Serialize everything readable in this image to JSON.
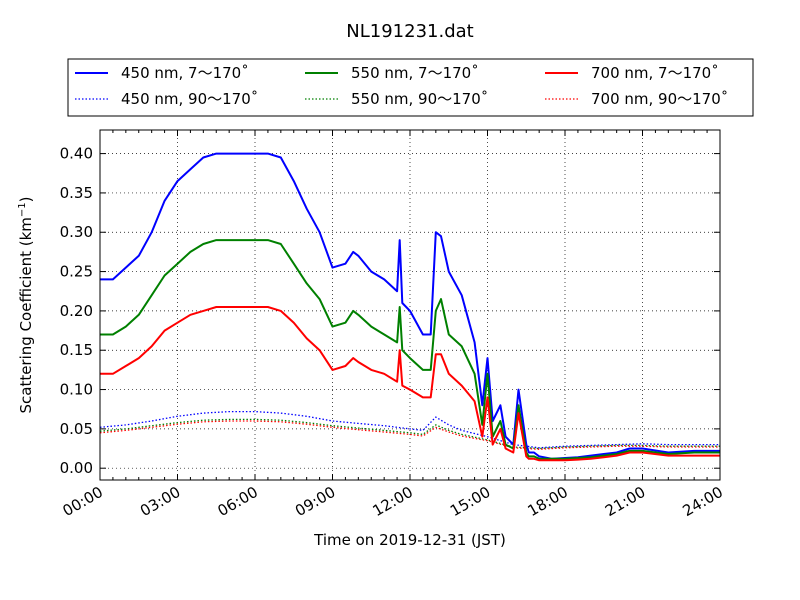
{
  "chart_data": {
    "type": "line",
    "title": "NL191231.dat",
    "xlabel": "Time on 2019-12-31 (JST)",
    "ylabel": {
      "prefix": "Scattering Coefficient (km",
      "sup": "−1",
      "suffix": ")"
    },
    "x_unit": "hours",
    "xlim": [
      0,
      24
    ],
    "ylim": [
      -0.015,
      0.43
    ],
    "x_ticks": [
      {
        "value": 0,
        "label": "00:00"
      },
      {
        "value": 3,
        "label": "03:00"
      },
      {
        "value": 6,
        "label": "06:00"
      },
      {
        "value": 9,
        "label": "09:00"
      },
      {
        "value": 12,
        "label": "12:00"
      },
      {
        "value": 15,
        "label": "15:00"
      },
      {
        "value": 18,
        "label": "18:00"
      },
      {
        "value": 21,
        "label": "21:00"
      },
      {
        "value": 24,
        "label": "24:00"
      }
    ],
    "y_ticks": [
      {
        "value": 0.0,
        "label": "0.00"
      },
      {
        "value": 0.05,
        "label": "0.05"
      },
      {
        "value": 0.1,
        "label": "0.10"
      },
      {
        "value": 0.15,
        "label": "0.15"
      },
      {
        "value": 0.2,
        "label": "0.20"
      },
      {
        "value": 0.25,
        "label": "0.25"
      },
      {
        "value": 0.3,
        "label": "0.30"
      },
      {
        "value": 0.35,
        "label": "0.35"
      },
      {
        "value": 0.4,
        "label": "0.40"
      }
    ],
    "grid": true,
    "legend_position": "top-outside",
    "series": [
      {
        "name": "450 nm, 7～170˚",
        "color": "#0000ff",
        "style": "solid",
        "x": [
          0,
          0.5,
          1,
          1.5,
          2,
          2.5,
          3,
          3.5,
          4,
          4.5,
          5,
          5.5,
          6,
          6.5,
          7,
          7.5,
          8,
          8.5,
          9,
          9.5,
          9.8,
          10,
          10.5,
          11,
          11.5,
          11.6,
          11.7,
          12,
          12.5,
          12.8,
          13,
          13.2,
          13.5,
          14,
          14.5,
          14.8,
          15,
          15.2,
          15.5,
          15.7,
          16,
          16.2,
          16.5,
          16.6,
          16.8,
          17,
          17.5,
          18,
          18.5,
          19,
          19.5,
          20,
          20.5,
          21,
          22,
          23,
          24
        ],
        "y": [
          0.24,
          0.24,
          0.255,
          0.27,
          0.3,
          0.34,
          0.365,
          0.38,
          0.395,
          0.4,
          0.4,
          0.4,
          0.4,
          0.4,
          0.395,
          0.365,
          0.33,
          0.3,
          0.255,
          0.26,
          0.275,
          0.27,
          0.25,
          0.24,
          0.225,
          0.29,
          0.21,
          0.2,
          0.17,
          0.17,
          0.3,
          0.295,
          0.25,
          0.22,
          0.16,
          0.08,
          0.14,
          0.06,
          0.08,
          0.04,
          0.03,
          0.1,
          0.03,
          0.02,
          0.02,
          0.015,
          0.012,
          0.013,
          0.014,
          0.016,
          0.018,
          0.02,
          0.025,
          0.025,
          0.02,
          0.022,
          0.022
        ]
      },
      {
        "name": "550 nm, 7～170˚",
        "color": "#008000",
        "style": "solid",
        "x": [
          0,
          0.5,
          1,
          1.5,
          2,
          2.5,
          3,
          3.5,
          4,
          4.5,
          5,
          5.5,
          6,
          6.5,
          7,
          7.5,
          8,
          8.5,
          9,
          9.5,
          9.8,
          10,
          10.5,
          11,
          11.5,
          11.6,
          11.7,
          12,
          12.5,
          12.8,
          13,
          13.2,
          13.5,
          14,
          14.5,
          14.8,
          15,
          15.2,
          15.5,
          15.7,
          16,
          16.2,
          16.5,
          16.6,
          16.8,
          17,
          17.5,
          18,
          18.5,
          19,
          19.5,
          20,
          20.5,
          21,
          22,
          23,
          24
        ],
        "y": [
          0.17,
          0.17,
          0.18,
          0.195,
          0.22,
          0.245,
          0.26,
          0.275,
          0.285,
          0.29,
          0.29,
          0.29,
          0.29,
          0.29,
          0.285,
          0.26,
          0.235,
          0.215,
          0.18,
          0.185,
          0.2,
          0.195,
          0.18,
          0.17,
          0.16,
          0.205,
          0.15,
          0.14,
          0.125,
          0.125,
          0.2,
          0.215,
          0.17,
          0.155,
          0.12,
          0.055,
          0.12,
          0.04,
          0.06,
          0.03,
          0.025,
          0.08,
          0.02,
          0.015,
          0.015,
          0.012,
          0.012,
          0.012,
          0.013,
          0.014,
          0.016,
          0.018,
          0.022,
          0.022,
          0.018,
          0.02,
          0.02
        ]
      },
      {
        "name": "700 nm, 7～170˚",
        "color": "#ff0000",
        "style": "solid",
        "x": [
          0,
          0.5,
          1,
          1.5,
          2,
          2.5,
          3,
          3.5,
          4,
          4.5,
          5,
          5.5,
          6,
          6.5,
          7,
          7.5,
          8,
          8.5,
          9,
          9.5,
          9.8,
          10,
          10.5,
          11,
          11.5,
          11.6,
          11.7,
          12,
          12.5,
          12.8,
          13,
          13.2,
          13.5,
          14,
          14.5,
          14.8,
          15,
          15.2,
          15.5,
          15.7,
          16,
          16.2,
          16.5,
          16.6,
          16.8,
          17,
          17.5,
          18,
          18.5,
          19,
          19.5,
          20,
          20.5,
          21,
          22,
          23,
          24
        ],
        "y": [
          0.12,
          0.12,
          0.13,
          0.14,
          0.155,
          0.175,
          0.185,
          0.195,
          0.2,
          0.205,
          0.205,
          0.205,
          0.205,
          0.205,
          0.2,
          0.185,
          0.165,
          0.15,
          0.125,
          0.13,
          0.14,
          0.135,
          0.125,
          0.12,
          0.11,
          0.15,
          0.105,
          0.1,
          0.09,
          0.09,
          0.145,
          0.145,
          0.12,
          0.105,
          0.085,
          0.04,
          0.09,
          0.03,
          0.05,
          0.025,
          0.02,
          0.07,
          0.015,
          0.012,
          0.012,
          0.01,
          0.01,
          0.01,
          0.011,
          0.012,
          0.014,
          0.016,
          0.02,
          0.02,
          0.016,
          0.016,
          0.016
        ]
      },
      {
        "name": "450 nm, 90～170˚",
        "color": "#0000ff",
        "style": "dotted",
        "x": [
          0,
          1,
          2,
          3,
          4,
          5,
          6,
          7,
          8,
          9,
          10,
          11,
          12,
          12.5,
          13,
          13.5,
          14,
          15,
          16,
          17,
          18,
          19,
          20,
          21,
          22,
          23,
          24
        ],
        "y": [
          0.052,
          0.055,
          0.06,
          0.066,
          0.07,
          0.072,
          0.072,
          0.07,
          0.066,
          0.06,
          0.057,
          0.054,
          0.05,
          0.048,
          0.065,
          0.055,
          0.048,
          0.04,
          0.03,
          0.026,
          0.028,
          0.029,
          0.03,
          0.031,
          0.03,
          0.03,
          0.03
        ]
      },
      {
        "name": "550 nm, 90～170˚",
        "color": "#008000",
        "style": "dotted",
        "x": [
          0,
          1,
          2,
          3,
          4,
          5,
          6,
          7,
          8,
          9,
          10,
          11,
          12,
          12.5,
          13,
          13.5,
          14,
          15,
          16,
          17,
          18,
          19,
          20,
          21,
          22,
          23,
          24
        ],
        "y": [
          0.047,
          0.05,
          0.054,
          0.058,
          0.061,
          0.062,
          0.062,
          0.061,
          0.058,
          0.054,
          0.051,
          0.048,
          0.045,
          0.043,
          0.055,
          0.048,
          0.043,
          0.036,
          0.027,
          0.025,
          0.027,
          0.028,
          0.029,
          0.029,
          0.028,
          0.028,
          0.028
        ]
      },
      {
        "name": "700 nm, 90～170˚",
        "color": "#ff0000",
        "style": "dotted",
        "x": [
          0,
          1,
          2,
          3,
          4,
          5,
          6,
          7,
          8,
          9,
          10,
          11,
          12,
          12.5,
          13,
          13.5,
          14,
          15,
          16,
          17,
          18,
          19,
          20,
          21,
          22,
          23,
          24
        ],
        "y": [
          0.045,
          0.048,
          0.052,
          0.056,
          0.059,
          0.06,
          0.06,
          0.059,
          0.056,
          0.052,
          0.049,
          0.046,
          0.043,
          0.041,
          0.052,
          0.046,
          0.041,
          0.035,
          0.026,
          0.024,
          0.026,
          0.027,
          0.028,
          0.028,
          0.027,
          0.027,
          0.027
        ]
      }
    ]
  }
}
